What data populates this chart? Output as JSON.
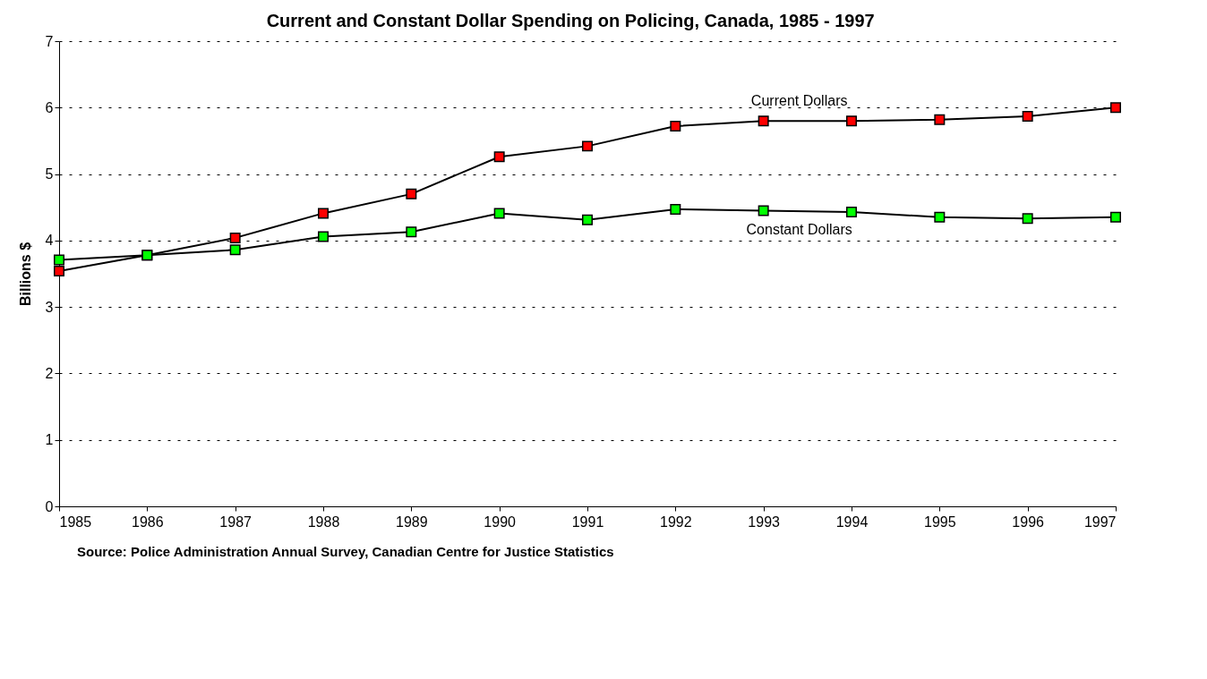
{
  "chart_data": {
    "type": "line",
    "title": "Current and Constant Dollar Spending on Policing, Canada, 1985 - 1997",
    "ylabel": "Billions $",
    "x": [
      1985,
      1986,
      1987,
      1988,
      1989,
      1990,
      1991,
      1992,
      1993,
      1994,
      1995,
      1996,
      1997
    ],
    "series": [
      {
        "name": "Current Dollars",
        "color": "#ff0000",
        "values": [
          3.54,
          3.78,
          4.04,
          4.41,
          4.7,
          5.26,
          5.42,
          5.72,
          5.8,
          5.8,
          5.82,
          5.87,
          6.0
        ]
      },
      {
        "name": "Constant Dollars",
        "color": "#00ff00",
        "values": [
          3.71,
          3.78,
          3.86,
          4.06,
          4.13,
          4.41,
          4.31,
          4.47,
          4.45,
          4.43,
          4.35,
          4.33,
          4.35
        ]
      }
    ],
    "xlim": [
      1985,
      1997
    ],
    "xticks": [
      1985,
      1986,
      1987,
      1988,
      1989,
      1990,
      1991,
      1992,
      1993,
      1994,
      1995,
      1996,
      1997
    ],
    "ylim": [
      0,
      7
    ],
    "yticks": [
      0,
      1,
      2,
      3,
      4,
      5,
      6,
      7
    ],
    "grid": "y",
    "marker": "square",
    "line_style": "solid",
    "annotations": [
      "Source:   Police Administration Annual Survey, Canadian Centre for Justice Statistics"
    ]
  }
}
